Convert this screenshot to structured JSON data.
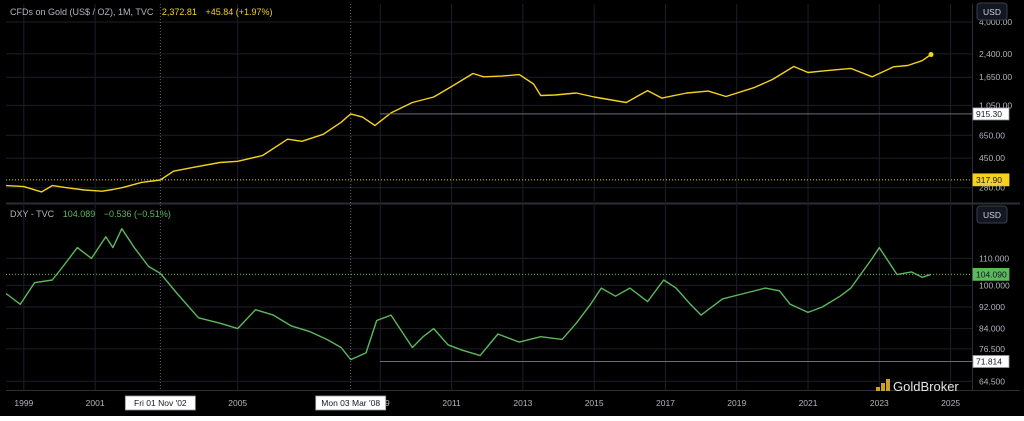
{
  "colors": {
    "background": "#000000",
    "panel_bg": "#131722",
    "gold_line": "#f5d21b",
    "dxy_line": "#5cb85c",
    "axis_text": "#b2b5be",
    "label_box_bg": "#ffffff",
    "label_box_text": "#131722",
    "grid": "#1c1f2a"
  },
  "chart_data": [
    {
      "type": "line",
      "title": "CFDs on Gold (US$ / OZ), 1M, TVC",
      "last_price": "2,372.81",
      "change": "+45.84 (+1.97%)",
      "currency_button": "USD",
      "scale": "log",
      "ylim": [
        230,
        4000
      ],
      "yticks": [
        "4,000.00",
        "2,400.00",
        "1,650.00",
        "1,050.00",
        "650.00",
        "450.00",
        "280.00"
      ],
      "price_labels": [
        {
          "value": 915.3,
          "text": "915.30",
          "style": "outline"
        },
        {
          "value": 317.9,
          "text": "317.90",
          "style": "gold",
          "dotted_line": true
        }
      ],
      "series": [
        {
          "x": [
            1998.5,
            1999.0,
            1999.5,
            1999.8,
            2000.2,
            2000.7,
            2001.2,
            2001.5,
            2001.8,
            2002.3,
            2002.83,
            2003.2,
            2003.8,
            2004.5,
            2005.0,
            2005.7,
            2006.4,
            2006.8,
            2007.4,
            2007.9,
            2008.17,
            2008.5,
            2008.85,
            2009.3,
            2009.9,
            2010.5,
            2011.0,
            2011.6,
            2011.9,
            2012.4,
            2012.9,
            2013.3,
            2013.5,
            2013.9,
            2014.5,
            2015.0,
            2015.9,
            2016.5,
            2016.9,
            2017.6,
            2018.2,
            2018.7,
            2019.5,
            2020.0,
            2020.6,
            2021.0,
            2021.5,
            2022.2,
            2022.8,
            2023.4,
            2023.8,
            2024.2,
            2024.45
          ],
          "values": [
            290,
            285,
            262,
            290,
            280,
            270,
            265,
            272,
            282,
            305,
            317,
            365,
            390,
            420,
            428,
            470,
            610,
            590,
            660,
            800,
            915,
            870,
            760,
            930,
            1100,
            1200,
            1420,
            1750,
            1660,
            1680,
            1720,
            1480,
            1230,
            1240,
            1280,
            1200,
            1100,
            1330,
            1180,
            1280,
            1320,
            1210,
            1400,
            1590,
            1960,
            1780,
            1830,
            1900,
            1660,
            1950,
            1990,
            2150,
            2372.81
          ]
        }
      ]
    },
    {
      "type": "line",
      "title": "DXY - TVC",
      "last_price": "104.089",
      "change": "−0.536 (−0.51%)",
      "currency_button": "USD",
      "ylim": [
        62,
        122
      ],
      "yticks": [
        "110.000",
        "100.000",
        "92.000",
        "84.000",
        "76.500",
        "64.500"
      ],
      "price_labels": [
        {
          "value": 104.09,
          "text": "104.090",
          "style": "green",
          "dotted_line": true
        },
        {
          "value": 71.814,
          "text": "71.814",
          "style": "outline"
        }
      ],
      "series": [
        {
          "x": [
            1998.5,
            1998.9,
            1999.3,
            1999.8,
            2000.1,
            2000.5,
            2000.9,
            2001.3,
            2001.5,
            2001.75,
            2002.1,
            2002.5,
            2002.83,
            2003.3,
            2003.9,
            2004.5,
            2005.0,
            2005.5,
            2006.0,
            2006.5,
            2007.0,
            2007.5,
            2007.9,
            2008.17,
            2008.6,
            2008.9,
            2009.3,
            2009.9,
            2010.2,
            2010.5,
            2010.9,
            2011.3,
            2011.8,
            2012.3,
            2012.9,
            2013.5,
            2014.1,
            2014.5,
            2014.9,
            2015.2,
            2015.6,
            2016.0,
            2016.5,
            2016.95,
            2017.3,
            2017.7,
            2018.0,
            2018.6,
            2019.2,
            2019.8,
            2020.2,
            2020.5,
            2021.0,
            2021.4,
            2021.9,
            2022.2,
            2022.8,
            2023.0,
            2023.5,
            2023.9,
            2024.2,
            2024.45
          ],
          "values": [
            97,
            93,
            101,
            102,
            107,
            114,
            110,
            118,
            114,
            121,
            114,
            107,
            104.5,
            97,
            88,
            86,
            84,
            91,
            89,
            85,
            83,
            80,
            77,
            72.5,
            75,
            87,
            89,
            77,
            81,
            84,
            78,
            76,
            74,
            82,
            79,
            81,
            80,
            86,
            93,
            99,
            96,
            99,
            94,
            102,
            99,
            93,
            89,
            95,
            97,
            99,
            98,
            93,
            90,
            92,
            96,
            99,
            110,
            114,
            104,
            105,
            103,
            104.09
          ]
        }
      ]
    }
  ],
  "time_axis": {
    "ticks": [
      {
        "year": 1999,
        "label": "1999"
      },
      {
        "year": 2001,
        "label": "2001"
      },
      {
        "year": 2005,
        "label": "2005"
      },
      {
        "year": 2009,
        "label": "2009"
      },
      {
        "year": 2011,
        "label": "2011"
      },
      {
        "year": 2013,
        "label": "2013"
      },
      {
        "year": 2015,
        "label": "2015"
      },
      {
        "year": 2017,
        "label": "2017"
      },
      {
        "year": 2019,
        "label": "2019"
      },
      {
        "year": 2021,
        "label": "2021"
      },
      {
        "year": 2023,
        "label": "2023"
      },
      {
        "year": 2025,
        "label": "2025"
      }
    ],
    "markers": [
      {
        "year": 2002.83,
        "label": "Fri 01 Nov '02"
      },
      {
        "year": 2008.17,
        "label": "Mon 03 Mar '08"
      }
    ]
  },
  "watermark": {
    "text": "GoldBroker"
  }
}
